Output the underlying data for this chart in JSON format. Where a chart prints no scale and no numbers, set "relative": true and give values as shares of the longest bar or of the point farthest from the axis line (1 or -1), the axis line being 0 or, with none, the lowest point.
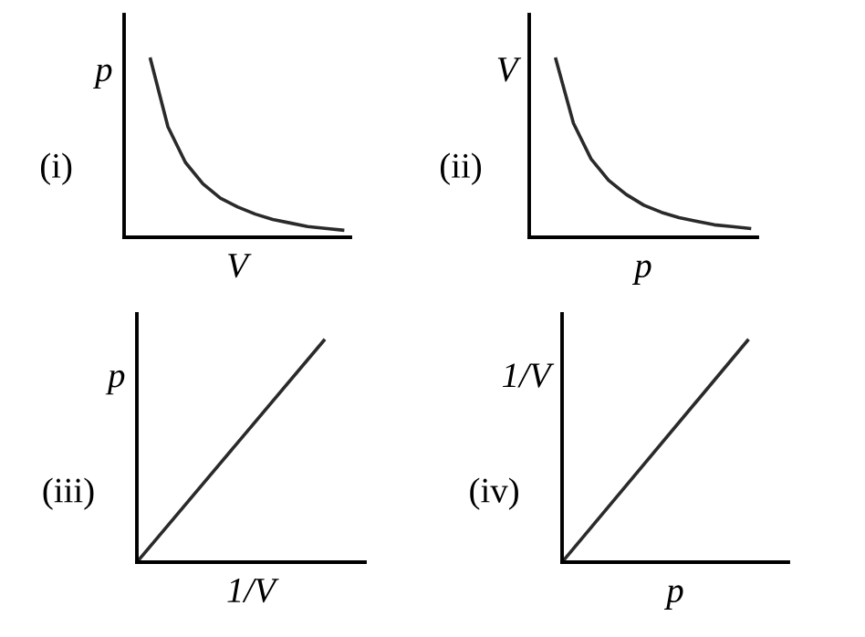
{
  "chart_data": [
    {
      "type": "line",
      "title": "(i)",
      "xlabel": "V",
      "ylabel": "p",
      "relative": true,
      "categories": [
        null,
        null,
        null,
        null,
        null,
        null,
        null,
        null,
        null,
        null,
        null,
        null
      ],
      "series": [
        {
          "color": "#2a2a2a",
          "values": [
            1,
            0.62,
            0.42,
            0.3,
            0.22,
            0.17,
            0.13,
            0.1,
            0.08,
            0.06,
            0.05,
            0.04
          ]
        }
      ]
    },
    {
      "type": "line",
      "title": "(ii)",
      "xlabel": "p",
      "ylabel": "V",
      "relative": true,
      "categories": [
        null,
        null,
        null,
        null,
        null,
        null,
        null,
        null,
        null,
        null,
        null,
        null
      ],
      "series": [
        {
          "color": "#2a2a2a",
          "values": [
            1,
            0.64,
            0.44,
            0.32,
            0.24,
            0.18,
            0.14,
            0.11,
            0.09,
            0.07,
            0.06,
            0.05
          ]
        }
      ]
    },
    {
      "type": "line",
      "title": "(iii)",
      "xlabel": "1/V",
      "ylabel": "p",
      "relative": true,
      "categories": [
        null,
        null
      ],
      "series": [
        {
          "color": "#2a2a2a",
          "values": [
            0,
            1
          ]
        }
      ]
    },
    {
      "type": "line",
      "title": "(iv)",
      "xlabel": "p",
      "ylabel": "1/V",
      "relative": true,
      "categories": [
        null,
        null
      ],
      "series": [
        {
          "color": "#2a2a2a",
          "values": [
            0,
            1
          ]
        }
      ]
    }
  ]
}
